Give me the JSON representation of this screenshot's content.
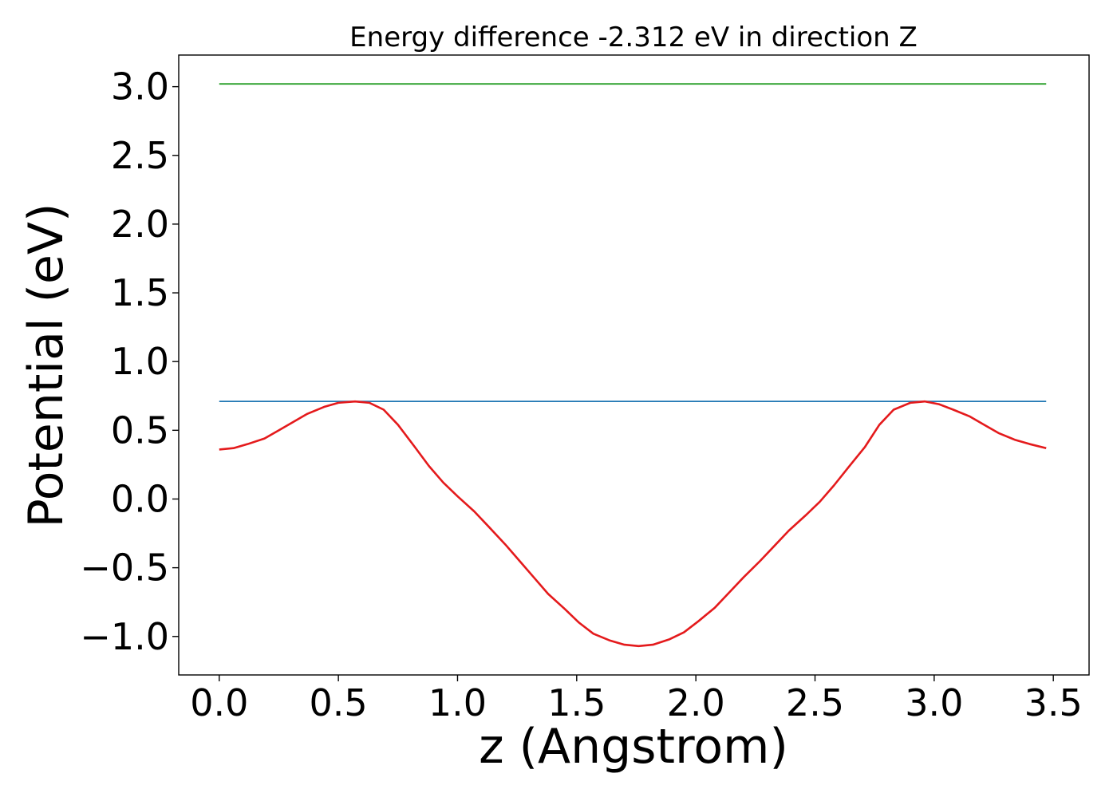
{
  "chart_data": {
    "type": "line",
    "title": "Energy difference -2.312 eV in direction Z",
    "xlabel": "z (Angstrom)",
    "ylabel": "Potential (eV)",
    "xlim": [
      -0.17,
      3.65
    ],
    "ylim": [
      -1.28,
      3.23
    ],
    "xticks": [
      0.0,
      0.5,
      1.0,
      1.5,
      2.0,
      2.5,
      3.0,
      3.5
    ],
    "xtick_labels": [
      "0.0",
      "0.5",
      "1.0",
      "1.5",
      "2.0",
      "2.5",
      "3.0",
      "3.5"
    ],
    "yticks": [
      -1.0,
      -0.5,
      0.0,
      0.5,
      1.0,
      1.5,
      2.0,
      2.5,
      3.0
    ],
    "ytick_labels": [
      "−1.0",
      "−0.5",
      "0.0",
      "0.5",
      "1.0",
      "1.5",
      "2.0",
      "2.5",
      "3.0"
    ],
    "grid": false,
    "series": [
      {
        "color": "#2ca02c",
        "x": [
          0.0,
          3.47
        ],
        "y": [
          3.02,
          3.02
        ]
      },
      {
        "color": "#1f77b4",
        "x": [
          0.0,
          3.47
        ],
        "y": [
          0.71,
          0.71
        ]
      },
      {
        "color": "#e41a1c",
        "x": [
          0.0,
          0.06,
          0.12,
          0.19,
          0.25,
          0.31,
          0.37,
          0.44,
          0.5,
          0.57,
          0.63,
          0.69,
          0.75,
          0.82,
          0.88,
          0.94,
          1.0,
          1.07,
          1.13,
          1.2,
          1.26,
          1.32,
          1.38,
          1.45,
          1.51,
          1.57,
          1.64,
          1.7,
          1.76,
          1.82,
          1.89,
          1.95,
          2.01,
          2.08,
          2.14,
          2.2,
          2.27,
          2.33,
          2.39,
          2.46,
          2.52,
          2.58,
          2.64,
          2.71,
          2.77,
          2.83,
          2.9,
          2.96,
          3.02,
          3.08,
          3.15,
          3.21,
          3.27,
          3.34,
          3.4,
          3.47
        ],
        "y": [
          0.36,
          0.37,
          0.4,
          0.44,
          0.5,
          0.56,
          0.62,
          0.67,
          0.7,
          0.71,
          0.7,
          0.65,
          0.54,
          0.38,
          0.24,
          0.12,
          0.02,
          -0.09,
          -0.2,
          -0.33,
          -0.45,
          -0.57,
          -0.69,
          -0.8,
          -0.9,
          -0.98,
          -1.03,
          -1.06,
          -1.07,
          -1.06,
          -1.02,
          -0.97,
          -0.89,
          -0.79,
          -0.68,
          -0.57,
          -0.45,
          -0.34,
          -0.23,
          -0.12,
          -0.02,
          0.1,
          0.23,
          0.38,
          0.54,
          0.65,
          0.7,
          0.71,
          0.69,
          0.65,
          0.6,
          0.54,
          0.48,
          0.43,
          0.4,
          0.37
        ]
      }
    ]
  }
}
